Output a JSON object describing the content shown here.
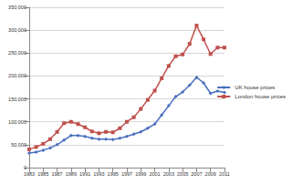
{
  "chart_data": {
    "type": "line",
    "x": [
      1983,
      1984,
      1985,
      1986,
      1987,
      1988,
      1989,
      1990,
      1991,
      1992,
      1993,
      1994,
      1995,
      1996,
      1997,
      1998,
      1999,
      2000,
      2001,
      2002,
      2003,
      2004,
      2005,
      2006,
      2007,
      2008,
      2009,
      2010,
      2011
    ],
    "series": [
      {
        "name": "UK house prices",
        "color": "#4a6fbe",
        "marker": "diamond",
        "values": [
          32000,
          34000,
          38000,
          43000,
          50000,
          60000,
          70000,
          70000,
          68000,
          64000,
          62000,
          62000,
          61000,
          64000,
          68000,
          73000,
          78000,
          86000,
          95000,
          115000,
          135000,
          155000,
          165000,
          180000,
          197000,
          185000,
          162000,
          167000,
          164000
        ]
      },
      {
        "name": "London house prices",
        "color": "#c0504d",
        "marker": "square",
        "values": [
          40000,
          45000,
          52000,
          62000,
          78000,
          97000,
          100000,
          95000,
          88000,
          79000,
          75000,
          78000,
          77000,
          86000,
          100000,
          110000,
          128000,
          148000,
          168000,
          195000,
          222000,
          243000,
          247000,
          270000,
          310000,
          280000,
          248000,
          262000,
          262000
        ]
      }
    ],
    "xlim": [
      1983,
      2011
    ],
    "xticks": [
      1983,
      1985,
      1987,
      1989,
      1991,
      1993,
      1995,
      1997,
      1999,
      2001,
      2003,
      2005,
      2007,
      2009,
      2011
    ],
    "ylim": [
      0,
      350000
    ],
    "yticks": [
      0,
      {
        "value": 50000,
        "label": "50,000"
      },
      {
        "value": 100000,
        "label": "100,000"
      },
      {
        "value": 150000,
        "label": "150,000"
      },
      {
        "value": 200000,
        "label": "200,000"
      },
      {
        "value": 250000,
        "label": "250,000"
      },
      {
        "value": 300000,
        "label": "300,000"
      },
      {
        "value": 350000,
        "label": "350,000"
      }
    ],
    "grid": true,
    "legend": "right"
  }
}
